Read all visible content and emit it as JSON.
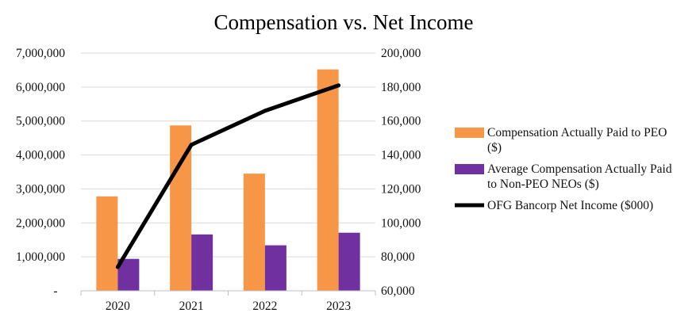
{
  "chart_data": {
    "type": "bar",
    "title": "Compensation vs. Net Income",
    "categories": [
      "2020",
      "2021",
      "2022",
      "2023"
    ],
    "series": [
      {
        "name": "Compensation Actually Paid to PEO ($)",
        "legend_lines": [
          "Compensation Actually Paid to PEO",
          "($)"
        ],
        "type": "bar",
        "axis": "left",
        "color": "#F79646",
        "values": [
          2780000,
          4870000,
          3450000,
          6520000
        ]
      },
      {
        "name": "Average Compensation Actually Paid to Non-PEO NEOs ($)",
        "legend_lines": [
          "Average Compensation Actually Paid",
          "to Non-PEO NEOs ($)"
        ],
        "type": "bar",
        "axis": "left",
        "color": "#7030A0",
        "values": [
          940000,
          1660000,
          1340000,
          1710000
        ]
      },
      {
        "name": "OFG Bancorp Net Income ($000)",
        "legend_lines": [
          "OFG Bancorp Net Income ($000)"
        ],
        "type": "line",
        "axis": "right",
        "color": "#000000",
        "values": [
          74000,
          146000,
          166000,
          181000
        ]
      }
    ],
    "y_left": {
      "min": 0,
      "max": 7000000,
      "ticks": [
        0,
        1000000,
        2000000,
        3000000,
        4000000,
        5000000,
        6000000,
        7000000
      ],
      "tick_labels": [
        "-",
        "1,000,000",
        "2,000,000",
        "3,000,000",
        "4,000,000",
        "5,000,000",
        "6,000,000",
        "7,000,000"
      ]
    },
    "y_right": {
      "min": 60000,
      "max": 200000,
      "ticks": [
        60000,
        80000,
        100000,
        120000,
        140000,
        160000,
        180000,
        200000
      ],
      "tick_labels": [
        "60,000",
        "80,000",
        "100,000",
        "120,000",
        "140,000",
        "160,000",
        "180,000",
        "200,000"
      ]
    },
    "grid": true,
    "legend_position": "right"
  }
}
